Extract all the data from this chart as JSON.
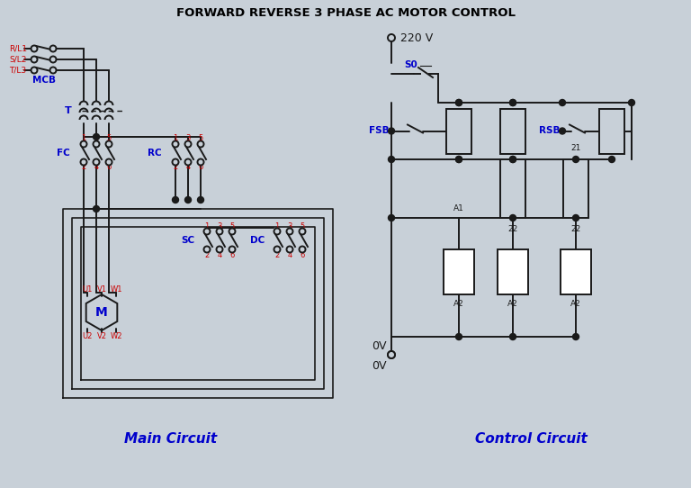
{
  "title": "FORWARD REVERSE 3 PHASE AC MOTOR CONTROL",
  "title_color": "#000000",
  "bg_color": "#c8d0d8",
  "line_color": "#1a1a1a",
  "red_color": "#cc0000",
  "blue_color": "#0000cc",
  "main_circuit_label": "Main Circuit",
  "control_circuit_label": "Control Circuit",
  "figsize": [
    7.68,
    5.42
  ],
  "dpi": 100
}
